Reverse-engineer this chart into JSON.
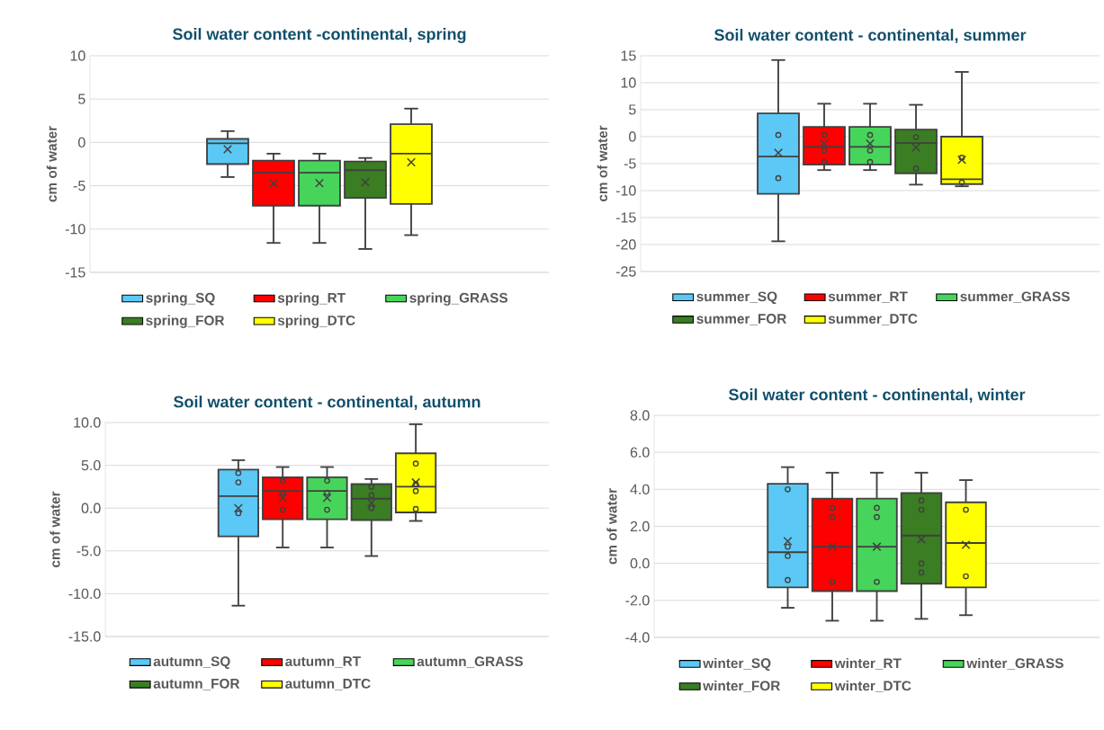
{
  "chart_data": [
    {
      "type": "box",
      "title": "Soil water content -continental, spring",
      "ylabel": "cm of water",
      "categories": [
        null
      ],
      "ylim": [
        -15,
        10
      ],
      "yticks": [
        -15,
        -10,
        -5,
        0,
        5,
        10
      ],
      "grid": "y",
      "legend": "bottom",
      "tick_labels": "y",
      "series": [
        {
          "name": "spring_SQ",
          "color": "#5bc8f5",
          "boxes": [
            {
              "low": -4.0,
              "q1": -2.5,
              "median": -0.1,
              "q3": 0.4,
              "high": 1.3,
              "mean": -0.8
            }
          ]
        },
        {
          "name": "spring_RT",
          "color": "#ff0000",
          "boxes": [
            {
              "low": -11.6,
              "q1": -7.3,
              "median": -3.5,
              "q3": -2.1,
              "high": -1.3,
              "mean": -4.7
            }
          ]
        },
        {
          "name": "spring_GRASS",
          "color": "#47d45a",
          "boxes": [
            {
              "low": -11.6,
              "q1": -7.3,
              "median": -3.5,
              "q3": -2.1,
              "high": -1.3,
              "mean": -4.7
            }
          ]
        },
        {
          "name": "spring_FOR",
          "color": "#3a7d22",
          "boxes": [
            {
              "low": -12.3,
              "q1": -6.4,
              "median": -3.2,
              "q3": -2.2,
              "high": -1.8,
              "mean": -4.6
            }
          ]
        },
        {
          "name": "spring_DTC",
          "color": "#ffff00",
          "boxes": [
            {
              "low": -10.7,
              "q1": -7.1,
              "median": -1.3,
              "q3": 2.1,
              "high": 3.9,
              "mean": -2.3
            }
          ]
        }
      ]
    },
    {
      "type": "box",
      "title": "Soil water content - continental, summer",
      "ylabel": "cm of water",
      "categories": [
        null
      ],
      "ylim": [
        -25,
        15
      ],
      "yticks": [
        -25,
        -20,
        -15,
        -10,
        -5,
        0,
        5,
        10,
        15
      ],
      "grid": "y",
      "legend": "bottom",
      "tick_labels": "y",
      "series": [
        {
          "name": "summer_SQ",
          "color": "#5bc8f5",
          "boxes": [
            {
              "low": -19.4,
              "q1": -10.6,
              "median": -3.7,
              "q3": 4.3,
              "high": 14.2,
              "mean": -3.0,
              "outliers": [
                0.3,
                -7.7
              ]
            }
          ]
        },
        {
          "name": "summer_RT",
          "color": "#ff0000",
          "boxes": [
            {
              "low": -6.2,
              "q1": -5.2,
              "median": -1.9,
              "q3": 1.8,
              "high": 6.1,
              "mean": -1.3,
              "outliers": [
                0.3,
                -2.6,
                -4.7
              ]
            }
          ]
        },
        {
          "name": "summer_GRASS",
          "color": "#47d45a",
          "boxes": [
            {
              "low": -6.2,
              "q1": -5.2,
              "median": -1.9,
              "q3": 1.8,
              "high": 6.1,
              "mean": -1.3,
              "outliers": [
                0.3,
                -2.6,
                -4.7
              ]
            }
          ]
        },
        {
          "name": "summer_FOR",
          "color": "#3a7d22",
          "boxes": [
            {
              "low": -8.9,
              "q1": -6.8,
              "median": -1.2,
              "q3": 1.3,
              "high": 5.9,
              "mean": -2.0,
              "outliers": [
                -0.1,
                -5.9
              ]
            }
          ]
        },
        {
          "name": "summer_DTC",
          "color": "#ffff00",
          "boxes": [
            {
              "low": -9.2,
              "q1": -8.8,
              "median": -7.9,
              "q3": 0.0,
              "high": 12.0,
              "mean": -4.3,
              "outliers": [
                -3.9,
                -8.5
              ]
            }
          ]
        }
      ]
    },
    {
      "type": "box",
      "title": "Soil water content  - continental, autumn",
      "ylabel": "cm of water",
      "categories": [
        null
      ],
      "ylim": [
        -15,
        10
      ],
      "yticks": [
        {
          "value": -15,
          "label": "-15.0"
        },
        {
          "value": -10,
          "label": "-10.0"
        },
        {
          "value": -5,
          "label": "-5.0"
        },
        {
          "value": 0,
          "label": "0.0"
        },
        {
          "value": 5,
          "label": "5.0"
        },
        {
          "value": 10,
          "label": "10.0"
        }
      ],
      "grid": "y",
      "legend": "bottom",
      "tick_labels": "y",
      "series": [
        {
          "name": "autumn_SQ",
          "color": "#5bc8f5",
          "boxes": [
            {
              "low": -11.4,
              "q1": -3.3,
              "median": 1.4,
              "q3": 4.5,
              "high": 5.6,
              "mean": 0.0,
              "outliers": [
                4.1,
                3.0,
                -0.6
              ]
            }
          ]
        },
        {
          "name": "autumn_RT",
          "color": "#ff0000",
          "boxes": [
            {
              "low": -4.6,
              "q1": -1.3,
              "median": 2.0,
              "q3": 3.6,
              "high": 4.8,
              "mean": 1.2,
              "outliers": [
                3.2,
                1.8,
                -0.2
              ]
            }
          ]
        },
        {
          "name": "autumn_GRASS",
          "color": "#47d45a",
          "boxes": [
            {
              "low": -4.6,
              "q1": -1.3,
              "median": 2.0,
              "q3": 3.6,
              "high": 4.8,
              "mean": 1.2,
              "outliers": [
                3.2,
                1.8,
                -0.2
              ]
            }
          ]
        },
        {
          "name": "autumn_FOR",
          "color": "#3a7d22",
          "boxes": [
            {
              "low": -5.6,
              "q1": -1.4,
              "median": 1.1,
              "q3": 2.8,
              "high": 3.4,
              "mean": 0.6,
              "outliers": [
                2.5,
                1.5,
                0.0
              ]
            }
          ]
        },
        {
          "name": "autumn_DTC",
          "color": "#ffff00",
          "boxes": [
            {
              "low": -1.5,
              "q1": -0.5,
              "median": 2.5,
              "q3": 6.4,
              "high": 9.8,
              "mean": 3.0,
              "outliers": [
                5.2,
                2.8,
                2.0,
                -0.1
              ]
            }
          ]
        }
      ]
    },
    {
      "type": "box",
      "title": "Soil water content   - continental, winter",
      "ylabel": "cm of water",
      "categories": [
        null
      ],
      "ylim": [
        -4,
        8
      ],
      "yticks": [
        {
          "value": -4,
          "label": "-4.0"
        },
        {
          "value": -2,
          "label": "-2.0"
        },
        {
          "value": 0,
          "label": "0.0"
        },
        {
          "value": 2,
          "label": "2.0"
        },
        {
          "value": 4,
          "label": "4.0"
        },
        {
          "value": 6,
          "label": "6.0"
        },
        {
          "value": 8,
          "label": "8.0"
        }
      ],
      "grid": "y",
      "legend": "bottom",
      "tick_labels": "y",
      "series": [
        {
          "name": "winter_SQ",
          "color": "#5bc8f5",
          "boxes": [
            {
              "low": -2.4,
              "q1": -1.3,
              "median": 0.6,
              "q3": 4.3,
              "high": 5.2,
              "mean": 1.2,
              "outliers": [
                4.0,
                0.9,
                0.4,
                -0.9
              ]
            }
          ]
        },
        {
          "name": "winter_RT",
          "color": "#ff0000",
          "boxes": [
            {
              "low": -3.1,
              "q1": -1.5,
              "median": 0.9,
              "q3": 3.5,
              "high": 4.9,
              "mean": 0.9,
              "outliers": [
                3.0,
                2.5,
                -1.0
              ]
            }
          ]
        },
        {
          "name": "winter_GRASS",
          "color": "#47d45a",
          "boxes": [
            {
              "low": -3.1,
              "q1": -1.5,
              "median": 0.9,
              "q3": 3.5,
              "high": 4.9,
              "mean": 0.9,
              "outliers": [
                3.0,
                2.5,
                -1.0
              ]
            }
          ]
        },
        {
          "name": "winter_FOR",
          "color": "#3a7d22",
          "boxes": [
            {
              "low": -3.0,
              "q1": -1.1,
              "median": 1.5,
              "q3": 3.8,
              "high": 4.9,
              "mean": 1.3,
              "outliers": [
                3.4,
                2.9,
                0.0,
                -0.5
              ]
            }
          ]
        },
        {
          "name": "winter_DTC",
          "color": "#ffff00",
          "boxes": [
            {
              "low": -2.8,
              "q1": -1.3,
              "median": 1.1,
              "q3": 3.3,
              "high": 4.5,
              "mean": 1.0,
              "outliers": [
                2.9,
                -0.7
              ]
            }
          ]
        }
      ]
    }
  ]
}
